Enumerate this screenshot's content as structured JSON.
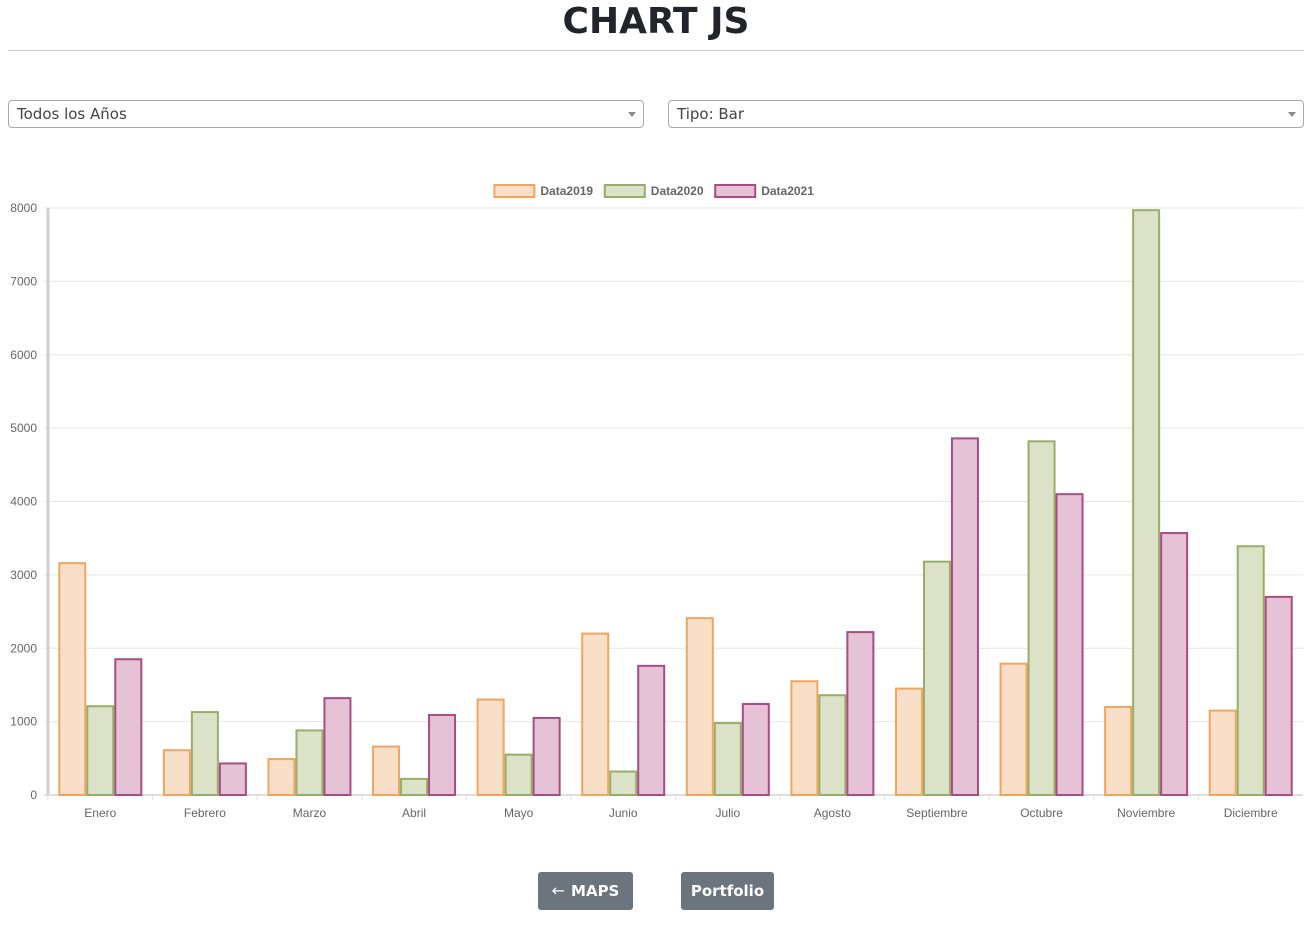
{
  "page": {
    "title": "CHART JS"
  },
  "filters": {
    "year_select": {
      "selected": "Todos los Años",
      "icon": "caret-down-icon"
    },
    "type_select": {
      "selected": "Tipo: Bar",
      "icon": "caret-down-icon"
    }
  },
  "buttons": {
    "maps": {
      "icon": "←",
      "label": "MAPS"
    },
    "portfolio": {
      "label": "Portfolio"
    }
  },
  "chart_data": {
    "type": "bar",
    "categories": [
      "Enero",
      "Febrero",
      "Marzo",
      "Abril",
      "Mayo",
      "Junio",
      "Julio",
      "Agosto",
      "Septiembre",
      "Octubre",
      "Noviembre",
      "Diciembre"
    ],
    "series": [
      {
        "name": "Data2019",
        "values": [
          3160,
          610,
          490,
          660,
          1300,
          2200,
          2410,
          1550,
          1450,
          1790,
          1200,
          1150
        ],
        "color": "#f0a65f",
        "fill": "#fadfc8"
      },
      {
        "name": "Data2020",
        "values": [
          1210,
          1130,
          880,
          220,
          550,
          320,
          980,
          1360,
          3180,
          4820,
          7970,
          3390
        ],
        "color": "#98ad68",
        "fill": "#dbe2c7"
      },
      {
        "name": "Data2021",
        "values": [
          1850,
          430,
          1320,
          1090,
          1050,
          1760,
          1240,
          2220,
          4860,
          4100,
          3570,
          2700
        ],
        "color": "#a84c82",
        "fill": "#e5c2d6"
      }
    ],
    "yticks": [
      0,
      1000,
      2000,
      3000,
      4000,
      5000,
      6000,
      7000,
      8000
    ],
    "ylim": [
      0,
      8000
    ],
    "title": "",
    "xlabel": "",
    "ylabel": "",
    "grid": true,
    "legend_position": "top"
  }
}
